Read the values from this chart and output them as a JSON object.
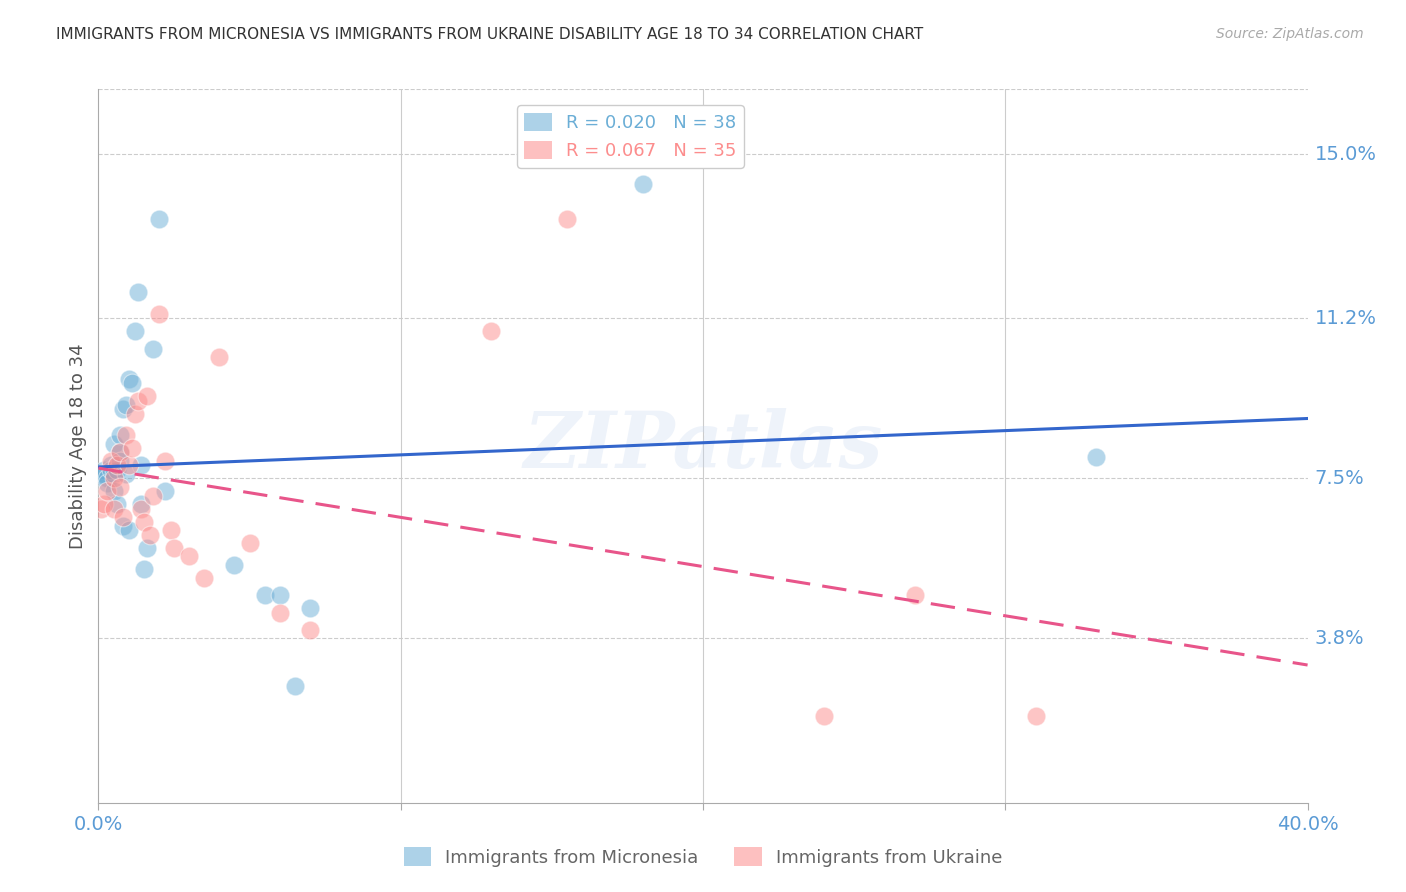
{
  "title": "IMMIGRANTS FROM MICRONESIA VS IMMIGRANTS FROM UKRAINE DISABILITY AGE 18 TO 34 CORRELATION CHART",
  "source": "Source: ZipAtlas.com",
  "ylabel": "Disability Age 18 to 34",
  "ytick_vals": [
    0.0,
    0.038,
    0.075,
    0.112,
    0.15
  ],
  "ytick_labels": [
    "",
    "3.8%",
    "7.5%",
    "11.2%",
    "15.0%"
  ],
  "xlim": [
    0.0,
    0.4
  ],
  "ylim": [
    0.0,
    0.165
  ],
  "watermark": "ZIPatlas",
  "micronesia_color": "#6baed6",
  "ukraine_color": "#fc8d8d",
  "trendline_blue": "#3366cc",
  "trendline_pink": "#e8558a",
  "micronesia_x": [
    0.001,
    0.002,
    0.002,
    0.003,
    0.003,
    0.004,
    0.004,
    0.005,
    0.005,
    0.005,
    0.006,
    0.006,
    0.007,
    0.007,
    0.007,
    0.008,
    0.008,
    0.009,
    0.009,
    0.01,
    0.01,
    0.011,
    0.012,
    0.013,
    0.014,
    0.014,
    0.015,
    0.016,
    0.018,
    0.02,
    0.022,
    0.045,
    0.055,
    0.06,
    0.065,
    0.07,
    0.18,
    0.33
  ],
  "micronesia_y": [
    0.076,
    0.077,
    0.076,
    0.075,
    0.074,
    0.078,
    0.077,
    0.076,
    0.072,
    0.083,
    0.077,
    0.069,
    0.081,
    0.085,
    0.079,
    0.064,
    0.091,
    0.076,
    0.092,
    0.098,
    0.063,
    0.097,
    0.109,
    0.118,
    0.078,
    0.069,
    0.054,
    0.059,
    0.105,
    0.135,
    0.072,
    0.055,
    0.048,
    0.048,
    0.027,
    0.045,
    0.143,
    0.08
  ],
  "ukraine_x": [
    0.001,
    0.002,
    0.003,
    0.004,
    0.005,
    0.005,
    0.006,
    0.007,
    0.007,
    0.008,
    0.009,
    0.01,
    0.011,
    0.012,
    0.013,
    0.014,
    0.015,
    0.016,
    0.017,
    0.018,
    0.02,
    0.022,
    0.024,
    0.025,
    0.03,
    0.035,
    0.04,
    0.05,
    0.06,
    0.07,
    0.13,
    0.155,
    0.24,
    0.27,
    0.31
  ],
  "ukraine_y": [
    0.068,
    0.069,
    0.072,
    0.079,
    0.068,
    0.075,
    0.078,
    0.081,
    0.073,
    0.066,
    0.085,
    0.078,
    0.082,
    0.09,
    0.093,
    0.068,
    0.065,
    0.094,
    0.062,
    0.071,
    0.113,
    0.079,
    0.063,
    0.059,
    0.057,
    0.052,
    0.103,
    0.06,
    0.044,
    0.04,
    0.109,
    0.135,
    0.02,
    0.048,
    0.02
  ],
  "background_color": "#ffffff",
  "grid_color": "#cccccc",
  "title_color": "#333333",
  "axis_label_color": "#5b9bd5"
}
